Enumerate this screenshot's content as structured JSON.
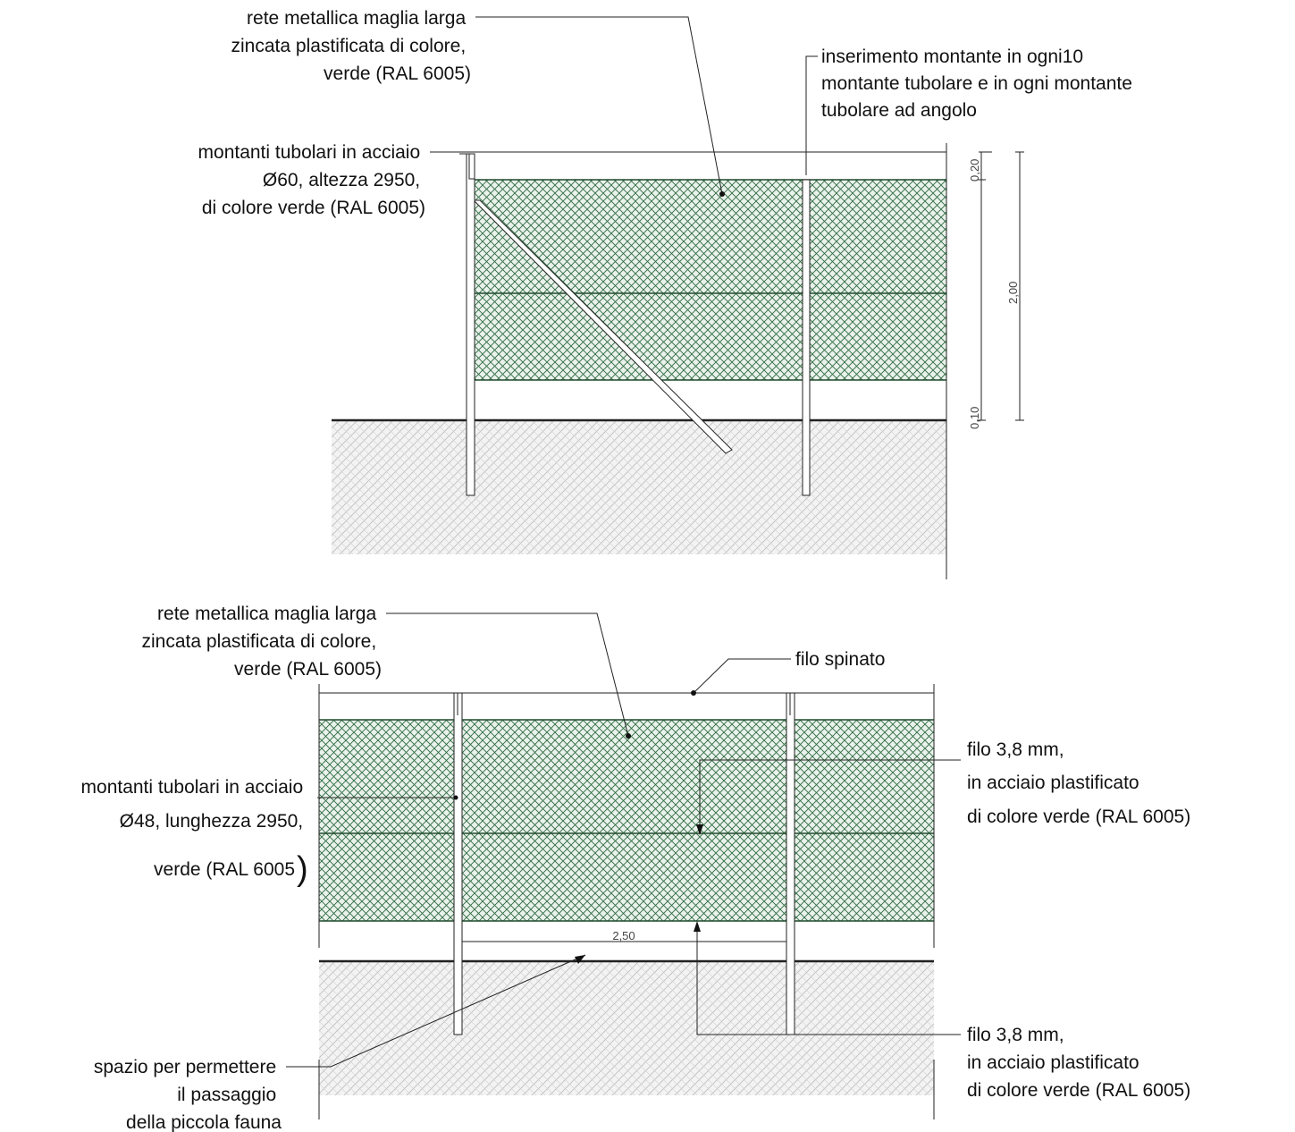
{
  "top": {
    "label_mesh": [
      "rete metallica maglia larga",
      "zincata plastificata di colore,",
      "verde (RAL 6005)"
    ],
    "label_insert": [
      "inserimento montante in ogni10",
      "montante tubolare e in ogni montante",
      "tubolare ad angolo"
    ],
    "label_posts": [
      "montanti tubolari in acciaio",
      "Ø60, altezza 2950,",
      "di colore verde (RAL 6005)"
    ],
    "dim_top": "0,20",
    "dim_height": "2,00",
    "dim_bottom": "0,10"
  },
  "bottom": {
    "label_mesh": [
      "rete metallica maglia larga",
      "zincata plastificata di colore,",
      "verde (RAL 6005)"
    ],
    "label_barbed": "filo spinato",
    "label_wire_upper": [
      "filo 3,8 mm,",
      "in acciaio plastificato",
      "di colore verde (RAL 6005)"
    ],
    "label_posts": [
      "montanti tubolari in acciaio",
      "Ø48, lunghezza 2950,",
      "verde (RAL 6005"
    ],
    "label_posts_paren": ")",
    "dim_span": "2,50",
    "label_wire_lower": [
      "filo 3,8 mm,",
      "in acciaio plastificato",
      "di colore verde (RAL 6005)"
    ],
    "label_fauna": [
      "spazio per permettere",
      "il passaggio",
      "della piccola fauna"
    ]
  }
}
